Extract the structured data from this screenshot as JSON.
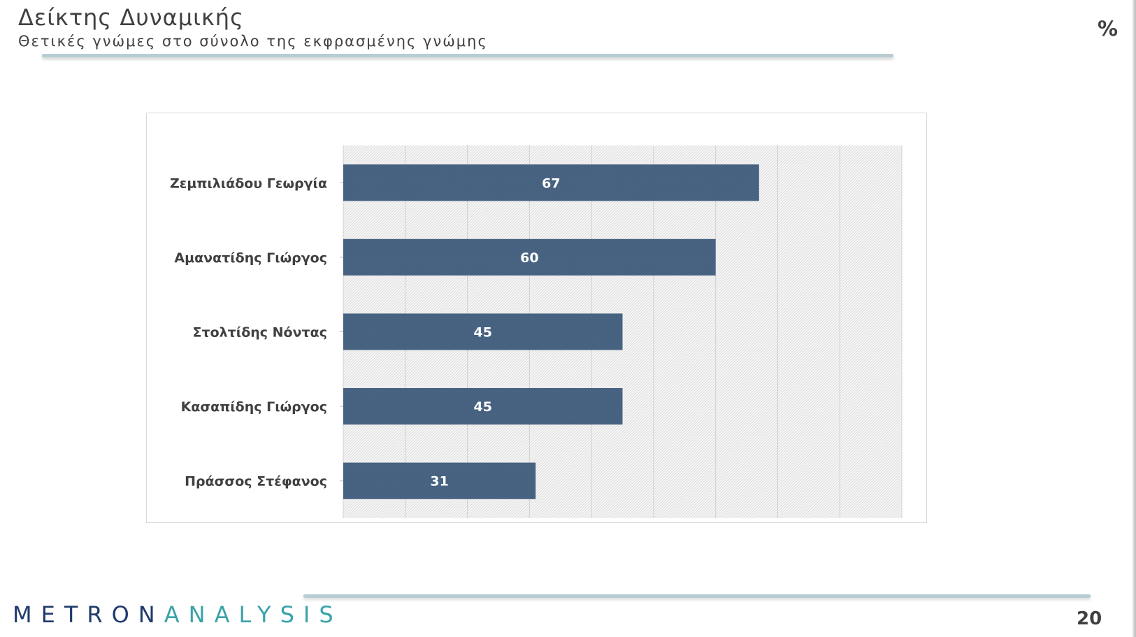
{
  "header": {
    "title": "Δείκτης Δυναμικής",
    "subtitle": "Θετικές γνώμες στο σύνολο της εκφρασμένης γνώμης",
    "unit": "%"
  },
  "footer": {
    "logo_part1": "METRON",
    "logo_part2": "ANALYSIS",
    "page_number": "20"
  },
  "colors": {
    "bar": "#4a6584",
    "logo_dark": "#1f3b6b",
    "logo_teal": "#3aa3a8"
  },
  "chart_data": {
    "type": "bar",
    "orientation": "horizontal",
    "categories": [
      "Ζεμπιλιάδου Γεωργία",
      "Αμανατίδης Γιώργος",
      "Στολτίδης Νόντας",
      "Κασαπίδης Γιώργος",
      "Πράσσος Στέφανος"
    ],
    "values": [
      67,
      60,
      45,
      45,
      31
    ],
    "xlim": [
      0,
      90
    ],
    "grid": true,
    "legend": "none"
  }
}
